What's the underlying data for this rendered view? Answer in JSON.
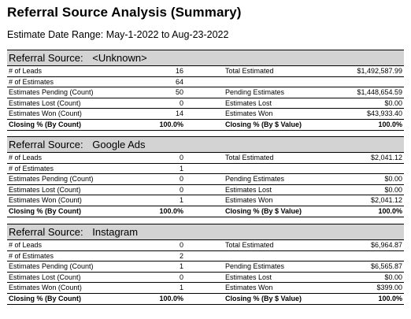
{
  "title": "Referral Source Analysis (Summary)",
  "date_range_label": "Estimate Date Range:",
  "date_range_value": "May-1-2022 to Aug-23-2022",
  "referral_label": "Referral Source:",
  "sections": [
    {
      "name": "<Unknown>",
      "rows": [
        {
          "l1": "# of Leads",
          "v1": "16",
          "l2": "Total Estimated",
          "v2": "$1,492,587.99"
        },
        {
          "l1": "# of Estimates",
          "v1": "64",
          "l2": "",
          "v2": ""
        },
        {
          "l1": "Estimates Pending (Count)",
          "v1": "50",
          "l2": "Pending Estimates",
          "v2": "$1,448,654.59"
        },
        {
          "l1": "Estimates Lost (Count)",
          "v1": "0",
          "l2": "Estimates Lost",
          "v2": "$0.00"
        },
        {
          "l1": "Estimates Won (Count)",
          "v1": "14",
          "l2": "Estimates Won",
          "v2": "$43,933.40"
        },
        {
          "l1": "Closing % (By Count)",
          "v1": "100.0%",
          "l2": "Closing % (By $ Value)",
          "v2": "100.0%"
        }
      ]
    },
    {
      "name": "Google Ads",
      "rows": [
        {
          "l1": "# of Leads",
          "v1": "0",
          "l2": "Total Estimated",
          "v2": "$2,041.12"
        },
        {
          "l1": "# of Estimates",
          "v1": "1",
          "l2": "",
          "v2": ""
        },
        {
          "l1": "Estimates Pending (Count)",
          "v1": "0",
          "l2": "Pending Estimates",
          "v2": "$0.00"
        },
        {
          "l1": "Estimates Lost (Count)",
          "v1": "0",
          "l2": "Estimates Lost",
          "v2": "$0.00"
        },
        {
          "l1": "Estimates Won (Count)",
          "v1": "1",
          "l2": "Estimates Won",
          "v2": "$2,041.12"
        },
        {
          "l1": "Closing % (By Count)",
          "v1": "100.0%",
          "l2": "Closing % (By $ Value)",
          "v2": "100.0%"
        }
      ]
    },
    {
      "name": "Instagram",
      "rows": [
        {
          "l1": "# of Leads",
          "v1": "0",
          "l2": "Total Estimated",
          "v2": "$6,964.87"
        },
        {
          "l1": "# of Estimates",
          "v1": "2",
          "l2": "",
          "v2": ""
        },
        {
          "l1": "Estimates Pending (Count)",
          "v1": "1",
          "l2": "Pending Estimates",
          "v2": "$6,565.87"
        },
        {
          "l1": "Estimates Lost (Count)",
          "v1": "0",
          "l2": "Estimates Lost",
          "v2": "$0.00"
        },
        {
          "l1": "Estimates Won (Count)",
          "v1": "1",
          "l2": "Estimates Won",
          "v2": "$399.00"
        },
        {
          "l1": "Closing % (By Count)",
          "v1": "100.0%",
          "l2": "Closing % (By $ Value)",
          "v2": "100.0%"
        }
      ]
    }
  ]
}
